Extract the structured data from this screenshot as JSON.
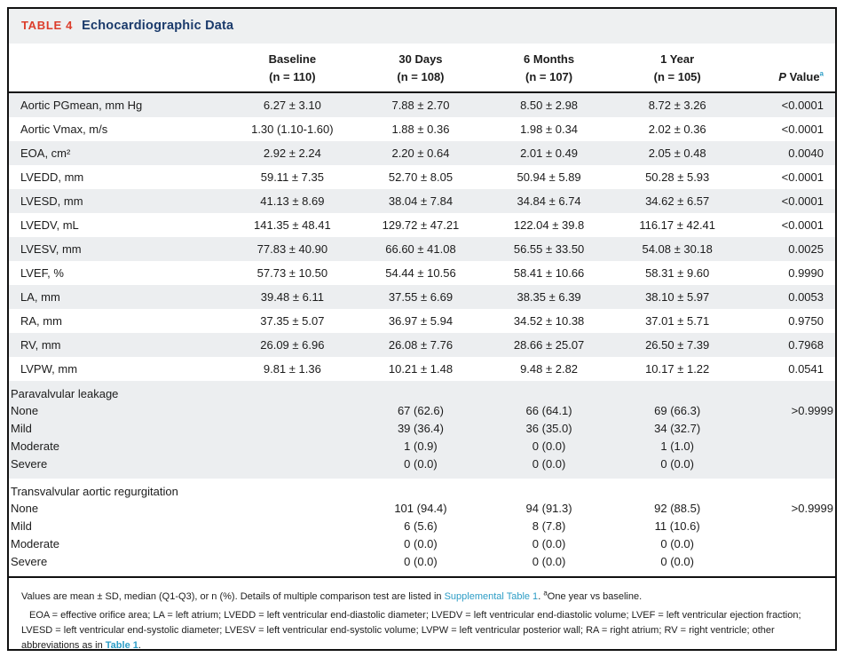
{
  "colors": {
    "accent_red": "#dc3d2b",
    "title_navy": "#1a3a6b",
    "link_teal": "#2d9dc6",
    "row_shade": "#eceef0",
    "header_bar": "#eef0f1",
    "rule_black": "#111111"
  },
  "table": {
    "label": "TABLE 4",
    "title": "Echocardiographic Data",
    "columns": [
      {
        "label": "Baseline",
        "n": "(n = 110)"
      },
      {
        "label": "30 Days",
        "n": "(n = 108)"
      },
      {
        "label": "6 Months",
        "n": "(n = 107)"
      },
      {
        "label": "1 Year",
        "n": "(n = 105)"
      },
      {
        "label_italic": "P",
        "label_rest": " Value",
        "sup": "a"
      }
    ],
    "rows": [
      {
        "label": "Aortic PGmean, mm Hg",
        "cells": [
          "6.27 ± 3.10",
          "7.88 ± 2.70",
          "8.50 ± 2.98",
          "8.72 ± 3.26"
        ],
        "p": "<0.0001"
      },
      {
        "label": "Aortic Vmax, m/s",
        "cells": [
          "1.30 (1.10-1.60)",
          "1.88 ± 0.36",
          "1.98 ± 0.34",
          "2.02 ± 0.36"
        ],
        "p": "<0.0001"
      },
      {
        "label": "EOA, cm²",
        "cells": [
          "2.92 ± 2.24",
          "2.20 ± 0.64",
          "2.01 ± 0.49",
          "2.05 ± 0.48"
        ],
        "p": "0.0040"
      },
      {
        "label": "LVEDD, mm",
        "cells": [
          "59.11 ± 7.35",
          "52.70 ± 8.05",
          "50.94 ± 5.89",
          "50.28 ± 5.93"
        ],
        "p": "<0.0001"
      },
      {
        "label": "LVESD, mm",
        "cells": [
          "41.13 ± 8.69",
          "38.04 ± 7.84",
          "34.84 ± 6.74",
          "34.62 ± 6.57"
        ],
        "p": "<0.0001"
      },
      {
        "label": "LVEDV, mL",
        "cells": [
          "141.35 ± 48.41",
          "129.72 ± 47.21",
          "122.04 ± 39.8",
          "116.17 ± 42.41"
        ],
        "p": "<0.0001"
      },
      {
        "label": "LVESV, mm",
        "cells": [
          "77.83 ± 40.90",
          "66.60 ± 41.08",
          "56.55 ± 33.50",
          "54.08 ± 30.18"
        ],
        "p": "0.0025"
      },
      {
        "label": "LVEF, %",
        "cells": [
          "57.73 ± 10.50",
          "54.44 ± 10.56",
          "58.41 ± 10.66",
          "58.31 ± 9.60"
        ],
        "p": "0.9990"
      },
      {
        "label": "LA, mm",
        "cells": [
          "39.48 ± 6.11",
          "37.55 ± 6.69",
          "38.35 ± 6.39",
          "38.10 ± 5.97"
        ],
        "p": "0.0053"
      },
      {
        "label": "RA, mm",
        "cells": [
          "37.35 ± 5.07",
          "36.97 ± 5.94",
          "34.52 ± 10.38",
          "37.01 ± 5.71"
        ],
        "p": "0.9750"
      },
      {
        "label": "RV, mm",
        "cells": [
          "26.09 ± 6.96",
          "26.08 ± 7.76",
          "28.66 ± 25.07",
          "26.50 ± 7.39"
        ],
        "p": "0.7968"
      },
      {
        "label": "LVPW, mm",
        "cells": [
          "9.81 ± 1.36",
          "10.21 ± 1.48",
          "9.48 ± 2.82",
          "10.17 ± 1.22"
        ],
        "p": "0.0541"
      }
    ],
    "groups": [
      {
        "label": "Paravalvular leakage",
        "shaded": true,
        "items": [
          {
            "label": "None",
            "cells": [
              "",
              "67 (62.6)",
              "66 (64.1)",
              "69 (66.3)"
            ],
            "p": ">0.9999"
          },
          {
            "label": "Mild",
            "cells": [
              "",
              "39 (36.4)",
              "36 (35.0)",
              "34 (32.7)"
            ],
            "p": ""
          },
          {
            "label": "Moderate",
            "cells": [
              "",
              "1 (0.9)",
              "0 (0.0)",
              "1 (1.0)"
            ],
            "p": ""
          },
          {
            "label": "Severe",
            "cells": [
              "",
              "0 (0.0)",
              "0 (0.0)",
              "0 (0.0)"
            ],
            "p": ""
          }
        ]
      },
      {
        "label": "Transvalvular aortic regurgitation",
        "shaded": false,
        "items": [
          {
            "label": "None",
            "cells": [
              "",
              "101 (94.4)",
              "94 (91.3)",
              "92 (88.5)"
            ],
            "p": ">0.9999"
          },
          {
            "label": "Mild",
            "cells": [
              "",
              "6 (5.6)",
              "8 (7.8)",
              "11 (10.6)"
            ],
            "p": ""
          },
          {
            "label": "Moderate",
            "cells": [
              "",
              "0 (0.0)",
              "0 (0.0)",
              "0 (0.0)"
            ],
            "p": ""
          },
          {
            "label": "Severe",
            "cells": [
              "",
              "0 (0.0)",
              "0 (0.0)",
              "0 (0.0)"
            ],
            "p": ""
          }
        ]
      }
    ],
    "footnotes": {
      "line1": [
        {
          "text": "Values are mean ± SD, median (Q1-Q3), or n (%). Details of multiple comparison test are listed in "
        },
        {
          "text": "Supplemental Table 1",
          "type": "link"
        },
        {
          "text": ". "
        },
        {
          "text": "a",
          "type": "sup"
        },
        {
          "text": "One year vs baseline."
        }
      ],
      "line2": [
        {
          "text": "EOA = effective orifice area; LA = left atrium; LVEDD = left ventricular end-diastolic diameter; LVEDV = left ventricular end-diastolic volume; LVEF = left ventricular ejection fraction; LVESD = left ventricular end-systolic diameter; LVESV = left ventricular end-systolic volume; LVPW = left ventricular posterior wall; RA = right atrium; RV = right ventricle; other abbreviations as in "
        },
        {
          "text": "Table 1",
          "type": "link-bold"
        },
        {
          "text": "."
        }
      ]
    }
  }
}
